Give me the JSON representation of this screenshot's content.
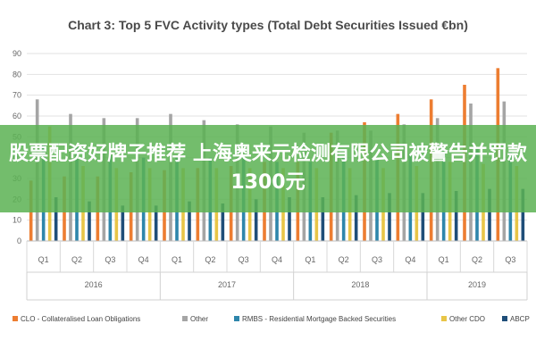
{
  "chart_data": {
    "type": "bar",
    "title": "Chart 3: Top 5 FVC Activity types (Total Debt Securities Issued €bn)",
    "categories": [
      "Q1",
      "Q2",
      "Q3",
      "Q4",
      "Q1",
      "Q2",
      "Q3",
      "Q4",
      "Q1",
      "Q2",
      "Q3",
      "Q4",
      "Q1",
      "Q2",
      "Q3"
    ],
    "groups": [
      {
        "label": "2016",
        "count": 4
      },
      {
        "label": "2017",
        "count": 4
      },
      {
        "label": "2018",
        "count": 4
      },
      {
        "label": "2019",
        "count": 3
      }
    ],
    "ylim": [
      0,
      90
    ],
    "yticks": [
      0,
      10,
      20,
      30,
      40,
      50,
      60,
      70,
      80,
      90
    ],
    "series": [
      {
        "name": "CLO - Collateralised Loan Obligations",
        "color": "#ed7d31",
        "values": [
          29,
          31,
          31,
          33,
          34,
          35,
          36,
          38,
          38,
          52,
          57,
          61,
          68,
          75,
          83
        ]
      },
      {
        "name": "Other",
        "color": "#a5a5a5",
        "values": [
          68,
          61,
          59,
          59,
          61,
          58,
          56,
          55,
          52,
          53,
          53,
          56,
          59,
          66,
          67
        ]
      },
      {
        "name": "RMBS - Residential Mortgage Backed Securities",
        "color": "#2e86ab",
        "values": [
          46,
          45,
          41,
          40,
          40,
          40,
          40,
          38,
          38,
          40,
          39,
          42,
          43,
          45,
          43
        ]
      },
      {
        "name": "Other CDO",
        "color": "#e8c547",
        "values": [
          55,
          36,
          35,
          35,
          35,
          35,
          35,
          35,
          35,
          35,
          35,
          36,
          38,
          37,
          36
        ]
      },
      {
        "name": "ABCP",
        "color": "#1f4e79",
        "values": [
          21,
          19,
          17,
          17,
          19,
          18,
          20,
          21,
          21,
          22,
          23,
          23,
          24,
          25,
          25
        ]
      }
    ]
  },
  "overlay": {
    "text": "股票配资好牌子推荐 上海奥来元检测有限公司被警告并罚款1300元"
  }
}
